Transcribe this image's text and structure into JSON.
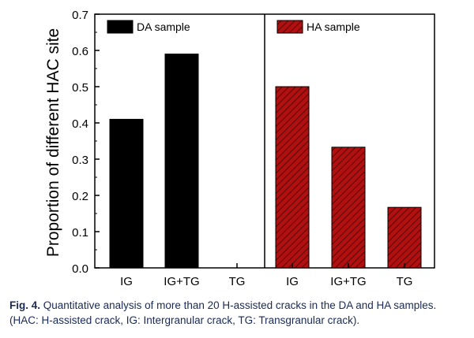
{
  "chart_data": {
    "type": "bar",
    "ylabel": "Proportion of different HAC site",
    "ylim": [
      0,
      0.7
    ],
    "yticks": [
      "0.0",
      "0.1",
      "0.2",
      "0.3",
      "0.4",
      "0.5",
      "0.6",
      "0.7"
    ],
    "grid": false,
    "panels": [
      {
        "name": "DA sample",
        "legend_label": "DA sample",
        "color": "#000000",
        "fill": "solid",
        "categories": [
          "IG",
          "IG+TG",
          "TG"
        ],
        "values": [
          0.41,
          0.59,
          0.0
        ]
      },
      {
        "name": "HA sample",
        "legend_label": "HA sample",
        "color": "#b01010",
        "fill": "hatched",
        "categories": [
          "IG",
          "IG+TG",
          "TG"
        ],
        "values": [
          0.5,
          0.333,
          0.167
        ]
      }
    ]
  },
  "caption": {
    "label": "Fig. 4.",
    "text": "Quantitative analysis of more than 20 H-assisted cracks in the DA and HA samples. (HAC: H-assisted crack, IG: Intergranular crack, TG: Transgranular crack)."
  }
}
